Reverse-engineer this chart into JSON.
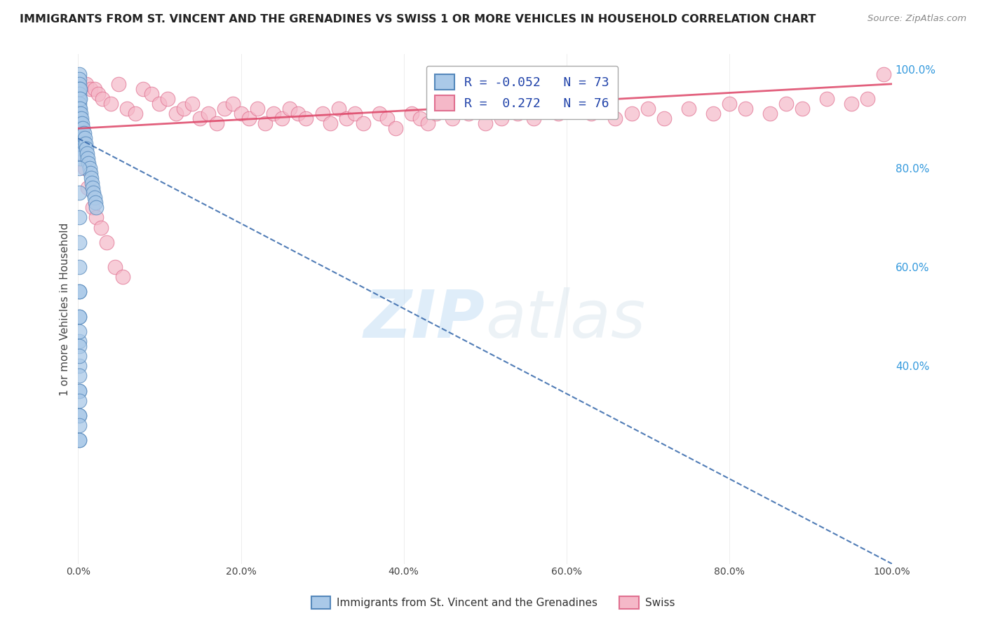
{
  "title": "IMMIGRANTS FROM ST. VINCENT AND THE GRENADINES VS SWISS 1 OR MORE VEHICLES IN HOUSEHOLD CORRELATION CHART",
  "source": "Source: ZipAtlas.com",
  "ylabel": "1 or more Vehicles in Household",
  "watermark_zip": "ZIP",
  "watermark_atlas": "atlas",
  "legend_blue_label": "R = -0.052   N = 73",
  "legend_pink_label": "R =  0.272   N = 76",
  "blue_R": -0.052,
  "blue_N": 73,
  "pink_R": 0.272,
  "pink_N": 76,
  "blue_color": "#aac9e8",
  "pink_color": "#f5b8c8",
  "blue_edge": "#5588bb",
  "pink_edge": "#e07090",
  "blue_trend_color": "#3366aa",
  "pink_trend_color": "#dd4466",
  "legend_blue_fill": "#aac9e8",
  "legend_pink_fill": "#f5b8c8",
  "bottom_legend_blue": "Immigrants from St. Vincent and the Grenadines",
  "bottom_legend_pink": "Swiss",
  "blue_x": [
    0.001,
    0.001,
    0.001,
    0.001,
    0.001,
    0.001,
    0.001,
    0.001,
    0.001,
    0.001,
    0.001,
    0.001,
    0.001,
    0.002,
    0.002,
    0.002,
    0.002,
    0.002,
    0.002,
    0.002,
    0.002,
    0.003,
    0.003,
    0.003,
    0.003,
    0.003,
    0.004,
    0.004,
    0.004,
    0.005,
    0.005,
    0.006,
    0.006,
    0.007,
    0.007,
    0.008,
    0.009,
    0.01,
    0.011,
    0.012,
    0.013,
    0.014,
    0.015,
    0.016,
    0.017,
    0.018,
    0.019,
    0.02,
    0.021,
    0.022,
    0.001,
    0.001,
    0.001,
    0.001,
    0.001,
    0.001,
    0.001,
    0.001,
    0.001,
    0.001,
    0.001,
    0.001,
    0.001,
    0.001,
    0.001,
    0.001,
    0.001,
    0.001,
    0.001,
    0.001,
    0.001,
    0.001,
    0.001
  ],
  "blue_y": [
    0.99,
    0.98,
    0.97,
    0.96,
    0.95,
    0.94,
    0.93,
    0.92,
    0.91,
    0.9,
    0.89,
    0.88,
    0.87,
    0.96,
    0.94,
    0.92,
    0.9,
    0.88,
    0.86,
    0.84,
    0.82,
    0.91,
    0.89,
    0.87,
    0.85,
    0.83,
    0.9,
    0.88,
    0.86,
    0.89,
    0.87,
    0.88,
    0.86,
    0.87,
    0.85,
    0.86,
    0.85,
    0.84,
    0.83,
    0.82,
    0.81,
    0.8,
    0.79,
    0.78,
    0.77,
    0.76,
    0.75,
    0.74,
    0.73,
    0.72,
    0.8,
    0.75,
    0.7,
    0.65,
    0.6,
    0.55,
    0.5,
    0.45,
    0.4,
    0.35,
    0.3,
    0.25,
    0.55,
    0.5,
    0.47,
    0.44,
    0.42,
    0.38,
    0.35,
    0.33,
    0.3,
    0.28,
    0.25
  ],
  "pink_x": [
    0.01,
    0.015,
    0.02,
    0.025,
    0.03,
    0.04,
    0.05,
    0.06,
    0.07,
    0.08,
    0.09,
    0.1,
    0.11,
    0.12,
    0.13,
    0.14,
    0.15,
    0.16,
    0.17,
    0.18,
    0.19,
    0.2,
    0.21,
    0.22,
    0.23,
    0.24,
    0.25,
    0.26,
    0.27,
    0.28,
    0.3,
    0.31,
    0.32,
    0.33,
    0.34,
    0.35,
    0.37,
    0.38,
    0.39,
    0.41,
    0.42,
    0.43,
    0.44,
    0.46,
    0.48,
    0.5,
    0.52,
    0.54,
    0.56,
    0.59,
    0.61,
    0.63,
    0.66,
    0.68,
    0.7,
    0.72,
    0.75,
    0.78,
    0.8,
    0.82,
    0.85,
    0.87,
    0.89,
    0.92,
    0.95,
    0.97,
    0.99,
    0.005,
    0.008,
    0.012,
    0.018,
    0.022,
    0.028,
    0.035,
    0.045,
    0.055
  ],
  "pink_y": [
    0.97,
    0.96,
    0.96,
    0.95,
    0.94,
    0.93,
    0.97,
    0.92,
    0.91,
    0.96,
    0.95,
    0.93,
    0.94,
    0.91,
    0.92,
    0.93,
    0.9,
    0.91,
    0.89,
    0.92,
    0.93,
    0.91,
    0.9,
    0.92,
    0.89,
    0.91,
    0.9,
    0.92,
    0.91,
    0.9,
    0.91,
    0.89,
    0.92,
    0.9,
    0.91,
    0.89,
    0.91,
    0.9,
    0.88,
    0.91,
    0.9,
    0.89,
    0.91,
    0.9,
    0.91,
    0.89,
    0.9,
    0.91,
    0.9,
    0.91,
    0.92,
    0.91,
    0.9,
    0.91,
    0.92,
    0.9,
    0.92,
    0.91,
    0.93,
    0.92,
    0.91,
    0.93,
    0.92,
    0.94,
    0.93,
    0.94,
    0.99,
    0.83,
    0.8,
    0.76,
    0.72,
    0.7,
    0.68,
    0.65,
    0.6,
    0.58
  ],
  "blue_trend_x0": 0.0,
  "blue_trend_x1": 1.0,
  "blue_trend_y0": 0.86,
  "blue_trend_y1": 0.0,
  "pink_trend_x0": 0.0,
  "pink_trend_x1": 1.0,
  "pink_trend_y0": 0.88,
  "pink_trend_y1": 0.97,
  "xlim": [
    0.0,
    1.0
  ],
  "ylim": [
    0.0,
    1.03
  ],
  "xtick_vals": [
    0.0,
    0.2,
    0.4,
    0.6,
    0.8,
    1.0
  ],
  "ytick_right_vals": [
    0.4,
    0.6,
    0.8,
    1.0
  ],
  "grid_color": "#cccccc",
  "title_fontsize": 11.5,
  "source_fontsize": 9.5,
  "tick_fontsize": 10,
  "ylabel_fontsize": 11
}
